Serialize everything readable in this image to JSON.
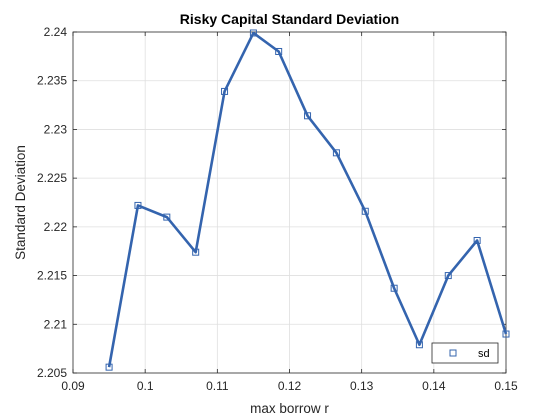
{
  "chart_data": {
    "type": "line",
    "title": "Risky Capital Standard Deviation",
    "xlabel": "max borrow r",
    "ylabel": "Standard Deviation",
    "xlim": [
      0.09,
      0.15
    ],
    "ylim": [
      2.205,
      2.24
    ],
    "xticks": [
      0.09,
      0.1,
      0.11,
      0.12,
      0.13,
      0.14,
      0.15
    ],
    "xtick_labels": [
      "0.09",
      "0.1",
      "0.11",
      "0.12",
      "0.13",
      "0.14",
      "0.15"
    ],
    "yticks": [
      2.205,
      2.21,
      2.215,
      2.22,
      2.225,
      2.23,
      2.235,
      2.24
    ],
    "ytick_labels": [
      "2.205",
      "2.21",
      "2.215",
      "2.22",
      "2.225",
      "2.23",
      "2.235",
      "2.24"
    ],
    "grid": true,
    "legend_position": "bottom-right",
    "marker": "square",
    "color": "#3464AE",
    "series": [
      {
        "name": "sd",
        "x": [
          0.095,
          0.099,
          0.103,
          0.107,
          0.111,
          0.115,
          0.1185,
          0.1225,
          0.1265,
          0.1305,
          0.1345,
          0.138,
          0.142,
          0.146,
          0.15
        ],
        "y": [
          2.2056,
          2.2222,
          2.221,
          2.2174,
          2.2339,
          2.2399,
          2.238,
          2.2314,
          2.2276,
          2.2216,
          2.2137,
          2.2079,
          2.215,
          2.2186,
          2.209
        ]
      }
    ]
  }
}
